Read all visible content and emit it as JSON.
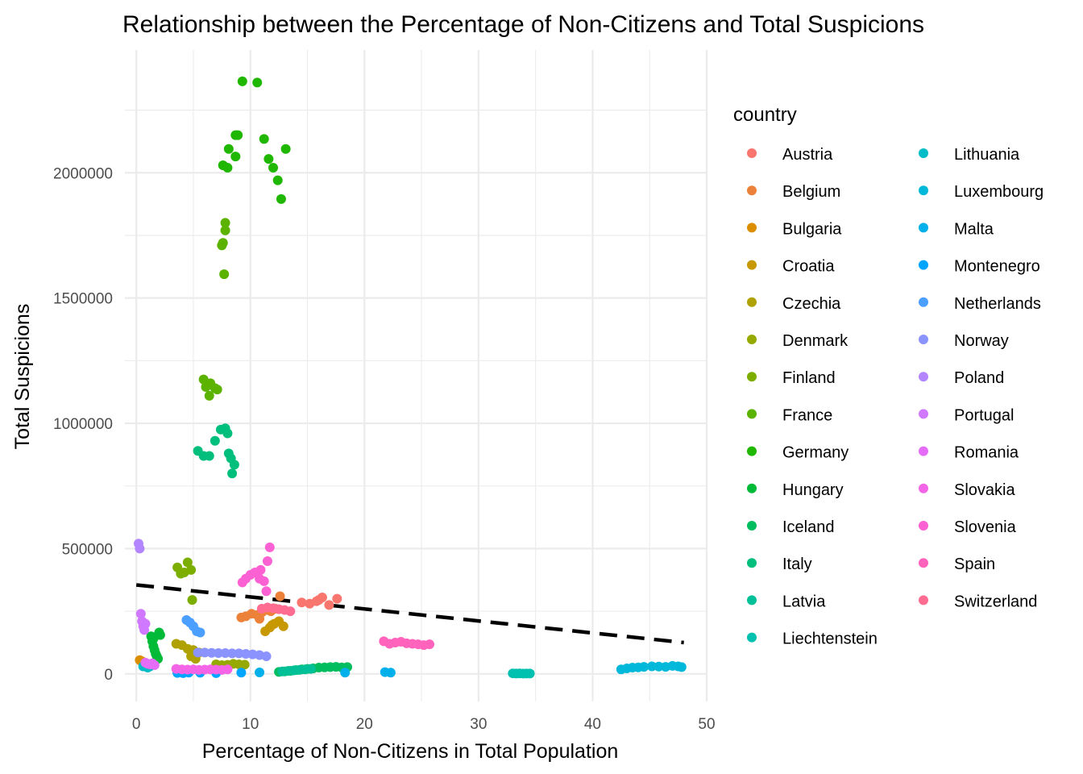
{
  "chart_data": {
    "type": "scatter",
    "title": "Relationship between the Percentage of Non-Citizens and Total Suspicions",
    "xlabel": "Percentage of Non-Citizens in Total Population",
    "ylabel": "Total Suspicions",
    "xlim": [
      -1,
      50
    ],
    "ylim": [
      -110000,
      2490000
    ],
    "x_ticks": [
      0,
      10,
      20,
      30,
      40,
      50
    ],
    "y_ticks": [
      0,
      500000,
      1000000,
      1500000,
      2000000
    ],
    "x_tick_labels": [
      "0",
      "10",
      "20",
      "30",
      "40",
      "50"
    ],
    "y_tick_labels": [
      "0",
      "500000",
      "1000000",
      "1500000",
      "2000000"
    ],
    "grid": true,
    "legend_title": "country",
    "legend_position": "right",
    "trend_line": {
      "style": "dashed",
      "color": "#000000",
      "x": [
        0,
        48
      ],
      "y": [
        355000,
        125000
      ]
    },
    "series": [
      {
        "name": "Austria",
        "color": "#F8766D",
        "points": [
          [
            14.5,
            285000
          ],
          [
            15.2,
            280000
          ],
          [
            15.8,
            290000
          ],
          [
            16.3,
            305000
          ],
          [
            16.9,
            275000
          ],
          [
            17.6,
            300000
          ],
          [
            16.0,
            295000
          ]
        ]
      },
      {
        "name": "Belgium",
        "color": "#EC8239",
        "points": [
          [
            9.2,
            225000
          ],
          [
            9.6,
            230000
          ],
          [
            10.1,
            240000
          ],
          [
            10.6,
            235000
          ],
          [
            11.0,
            245000
          ],
          [
            11.4,
            255000
          ],
          [
            11.8,
            250000
          ],
          [
            12.2,
            260000
          ],
          [
            12.6,
            310000
          ],
          [
            10.8,
            220000
          ]
        ]
      },
      {
        "name": "Bulgaria",
        "color": "#DB8E00",
        "points": [
          [
            0.3,
            55000
          ],
          [
            0.5,
            50000
          ],
          [
            0.7,
            45000
          ],
          [
            0.4,
            52000
          ]
        ]
      },
      {
        "name": "Croatia",
        "color": "#C79800",
        "points": [
          [
            11.3,
            170000
          ],
          [
            11.7,
            185000
          ],
          [
            12.1,
            200000
          ],
          [
            12.5,
            210000
          ],
          [
            12.9,
            190000
          ],
          [
            11.9,
            195000
          ]
        ]
      },
      {
        "name": "Czechia",
        "color": "#AFA100",
        "points": [
          [
            3.5,
            120000
          ],
          [
            4.0,
            115000
          ],
          [
            4.5,
            100000
          ],
          [
            5.0,
            95000
          ],
          [
            5.5,
            85000
          ],
          [
            4.8,
            70000
          ],
          [
            5.2,
            60000
          ]
        ]
      },
      {
        "name": "Denmark",
        "color": "#96A900",
        "points": [
          [
            7.0,
            38000
          ],
          [
            7.5,
            35000
          ],
          [
            8.0,
            36000
          ],
          [
            8.5,
            40000
          ],
          [
            9.0,
            38000
          ],
          [
            9.5,
            37000
          ]
        ]
      },
      {
        "name": "Finland",
        "color": "#7CAE00",
        "points": [
          [
            3.6,
            425000
          ],
          [
            3.9,
            400000
          ],
          [
            4.2,
            405000
          ],
          [
            4.5,
            445000
          ],
          [
            4.8,
            415000
          ],
          [
            4.9,
            295000
          ]
        ]
      },
      {
        "name": "France",
        "color": "#5BB300",
        "points": [
          [
            5.9,
            1175000
          ],
          [
            6.1,
            1145000
          ],
          [
            6.5,
            1160000
          ],
          [
            6.9,
            1140000
          ],
          [
            7.1,
            1135000
          ],
          [
            6.4,
            1110000
          ],
          [
            7.5,
            1710000
          ],
          [
            7.6,
            1720000
          ],
          [
            7.8,
            1770000
          ],
          [
            7.8,
            1800000
          ],
          [
            7.7,
            1595000
          ]
        ]
      },
      {
        "name": "Germany",
        "color": "#1FB700",
        "points": [
          [
            9.3,
            2365000
          ],
          [
            10.6,
            2360000
          ],
          [
            8.7,
            2150000
          ],
          [
            8.9,
            2150000
          ],
          [
            11.2,
            2135000
          ],
          [
            8.1,
            2095000
          ],
          [
            13.1,
            2095000
          ],
          [
            8.7,
            2065000
          ],
          [
            11.6,
            2055000
          ],
          [
            7.6,
            2030000
          ],
          [
            8.0,
            2020000
          ],
          [
            12.0,
            2020000
          ],
          [
            12.4,
            1970000
          ],
          [
            12.7,
            1895000
          ]
        ]
      },
      {
        "name": "Hungary",
        "color": "#00BA38",
        "points": [
          [
            1.3,
            150000
          ],
          [
            1.4,
            130000
          ],
          [
            1.5,
            110000
          ],
          [
            1.6,
            95000
          ],
          [
            1.7,
            80000
          ],
          [
            1.8,
            70000
          ],
          [
            1.9,
            60000
          ],
          [
            2.0,
            165000
          ],
          [
            2.1,
            155000
          ],
          [
            1.5,
            140000
          ]
        ]
      },
      {
        "name": "Iceland",
        "color": "#00BD5F",
        "points": [
          [
            12.5,
            8000
          ],
          [
            13.0,
            10000
          ],
          [
            13.5,
            12000
          ],
          [
            14.0,
            15000
          ],
          [
            14.5,
            18000
          ],
          [
            15.0,
            20000
          ],
          [
            15.5,
            22000
          ],
          [
            16.0,
            25000
          ],
          [
            16.5,
            26000
          ],
          [
            17.0,
            27000
          ],
          [
            17.5,
            28000
          ],
          [
            18.0,
            26000
          ],
          [
            18.5,
            27000
          ]
        ]
      },
      {
        "name": "Italy",
        "color": "#00BF7D",
        "points": [
          [
            5.4,
            890000
          ],
          [
            5.9,
            870000
          ],
          [
            6.4,
            870000
          ],
          [
            6.9,
            930000
          ],
          [
            7.4,
            975000
          ],
          [
            7.8,
            980000
          ],
          [
            8.0,
            960000
          ],
          [
            8.1,
            880000
          ],
          [
            8.3,
            860000
          ],
          [
            8.6,
            835000
          ],
          [
            8.4,
            800000
          ]
        ]
      },
      {
        "name": "Latvia",
        "color": "#00C097",
        "points": [
          [
            12.8,
            10000
          ],
          [
            13.3,
            12000
          ],
          [
            13.8,
            14000
          ],
          [
            14.3,
            16000
          ],
          [
            14.8,
            18000
          ],
          [
            15.3,
            20000
          ]
        ]
      },
      {
        "name": "Liechtenstein",
        "color": "#00C0AF",
        "points": [
          [
            33.0,
            2000
          ],
          [
            33.3,
            1500
          ],
          [
            33.6,
            1800
          ],
          [
            33.9,
            1200
          ],
          [
            34.2,
            1500
          ],
          [
            34.5,
            1400
          ]
        ]
      },
      {
        "name": "Lithuania",
        "color": "#00BCC6",
        "points": [
          [
            0.6,
            30000
          ],
          [
            0.8,
            35000
          ],
          [
            1.0,
            25000
          ],
          [
            1.2,
            30000
          ]
        ]
      },
      {
        "name": "Luxembourg",
        "color": "#00B8DA",
        "points": [
          [
            42.5,
            18000
          ],
          [
            43.0,
            22000
          ],
          [
            43.5,
            25000
          ],
          [
            44.0,
            26000
          ],
          [
            44.5,
            28000
          ],
          [
            45.2,
            30000
          ],
          [
            45.8,
            29000
          ],
          [
            46.4,
            28000
          ],
          [
            47.0,
            32000
          ],
          [
            47.5,
            30000
          ],
          [
            47.8,
            27000
          ]
        ]
      },
      {
        "name": "Malta",
        "color": "#00B0EB",
        "points": [
          [
            10.8,
            6000
          ],
          [
            18.3,
            5000
          ],
          [
            21.8,
            7000
          ],
          [
            22.3,
            5000
          ]
        ]
      },
      {
        "name": "Montenegro",
        "color": "#00A5FF",
        "points": [
          [
            3.6,
            4000
          ],
          [
            4.1,
            3000
          ],
          [
            4.6,
            5000
          ],
          [
            5.6,
            4500
          ],
          [
            7.0,
            3000
          ],
          [
            9.2,
            5000
          ]
        ]
      },
      {
        "name": "Netherlands",
        "color": "#4B9FFF",
        "points": [
          [
            4.4,
            215000
          ],
          [
            4.7,
            205000
          ],
          [
            5.0,
            190000
          ],
          [
            5.3,
            170000
          ],
          [
            5.6,
            165000
          ]
        ]
      },
      {
        "name": "Norway",
        "color": "#8B93FF",
        "points": [
          [
            5.4,
            85000
          ],
          [
            6.0,
            85000
          ],
          [
            6.6,
            84000
          ],
          [
            7.2,
            83000
          ],
          [
            7.8,
            83000
          ],
          [
            8.4,
            82000
          ],
          [
            9.0,
            82000
          ],
          [
            9.6,
            80000
          ],
          [
            10.2,
            78000
          ],
          [
            10.8,
            75000
          ],
          [
            11.4,
            70000
          ]
        ]
      },
      {
        "name": "Poland",
        "color": "#B385FF",
        "points": [
          [
            0.2,
            520000
          ],
          [
            0.3,
            500000
          ]
        ]
      },
      {
        "name": "Portugal",
        "color": "#D078FF",
        "points": [
          [
            0.4,
            240000
          ],
          [
            0.5,
            210000
          ],
          [
            0.6,
            190000
          ],
          [
            0.7,
            175000
          ],
          [
            0.8,
            200000
          ]
        ]
      },
      {
        "name": "Romania",
        "color": "#E46CF6",
        "points": [
          [
            0.8,
            45000
          ],
          [
            1.0,
            40000
          ],
          [
            1.2,
            38000
          ],
          [
            1.4,
            42000
          ],
          [
            1.6,
            35000
          ]
        ]
      },
      {
        "name": "Slovakia",
        "color": "#F365E6",
        "points": [
          [
            3.5,
            20000
          ],
          [
            4.0,
            18000
          ],
          [
            4.5,
            17000
          ],
          [
            5.0,
            18000
          ],
          [
            5.5,
            16000
          ],
          [
            6.0,
            17000
          ],
          [
            6.5,
            18000
          ],
          [
            7.0,
            17000
          ],
          [
            7.5,
            16000
          ],
          [
            8.0,
            18000
          ]
        ]
      },
      {
        "name": "Slovenia",
        "color": "#FC61D3",
        "points": [
          [
            9.3,
            365000
          ],
          [
            9.6,
            380000
          ],
          [
            10.0,
            395000
          ],
          [
            10.4,
            405000
          ],
          [
            10.8,
            380000
          ],
          [
            11.2,
            370000
          ],
          [
            11.5,
            450000
          ],
          [
            11.7,
            505000
          ],
          [
            11.4,
            330000
          ],
          [
            10.9,
            415000
          ]
        ]
      },
      {
        "name": "Spain",
        "color": "#FF63BC",
        "points": [
          [
            21.7,
            130000
          ],
          [
            22.2,
            120000
          ],
          [
            22.7,
            125000
          ],
          [
            23.2,
            128000
          ],
          [
            23.7,
            122000
          ],
          [
            24.2,
            120000
          ],
          [
            24.7,
            118000
          ],
          [
            25.2,
            115000
          ],
          [
            25.7,
            118000
          ]
        ]
      },
      {
        "name": "Switzerland",
        "color": "#FF6C91",
        "points": [
          [
            11.0,
            260000
          ],
          [
            11.5,
            265000
          ],
          [
            12.0,
            262000
          ],
          [
            12.5,
            258000
          ],
          [
            13.0,
            255000
          ],
          [
            13.5,
            250000
          ]
        ]
      }
    ]
  }
}
